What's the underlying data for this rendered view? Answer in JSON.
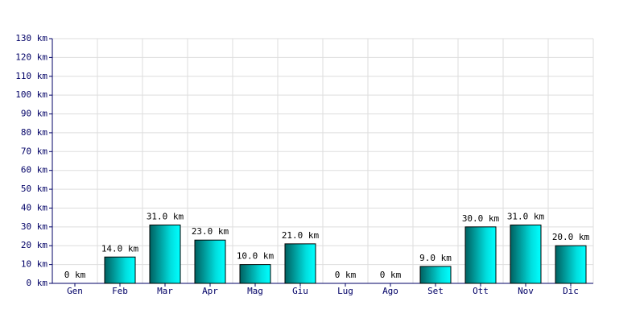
{
  "chart_data": {
    "type": "bar",
    "categories": [
      "Gen",
      "Feb",
      "Mar",
      "Apr",
      "Mag",
      "Giu",
      "Lug",
      "Ago",
      "Set",
      "Ott",
      "Nov",
      "Dic"
    ],
    "values": [
      0,
      14,
      31,
      23,
      10,
      21,
      0,
      0,
      9,
      30,
      31,
      20
    ],
    "value_labels": [
      "0 km",
      "14.0 km",
      "31.0 km",
      "23.0 km",
      "10.0 km",
      "21.0 km",
      "0 km",
      "0 km",
      "9.0 km",
      "30.0 km",
      "31.0 km",
      "20.0 km"
    ],
    "color": "#00e0e0",
    "ylim": [
      0,
      130
    ],
    "yticks": [
      {
        "value": 0,
        "label": "0 km"
      },
      {
        "value": 10,
        "label": "10 km"
      },
      {
        "value": 20,
        "label": "20 km"
      },
      {
        "value": 30,
        "label": "30 km"
      },
      {
        "value": 40,
        "label": "40 km"
      },
      {
        "value": 50,
        "label": "50 km"
      },
      {
        "value": 60,
        "label": "60 km"
      },
      {
        "value": 70,
        "label": "70 km"
      },
      {
        "value": 80,
        "label": "80 km"
      },
      {
        "value": 90,
        "label": "90 km"
      },
      {
        "value": 100,
        "label": "100 km"
      },
      {
        "value": 110,
        "label": "110 km"
      },
      {
        "value": 120,
        "label": "120 km"
      },
      {
        "value": 130,
        "label": "130 km"
      }
    ],
    "grid": true
  }
}
